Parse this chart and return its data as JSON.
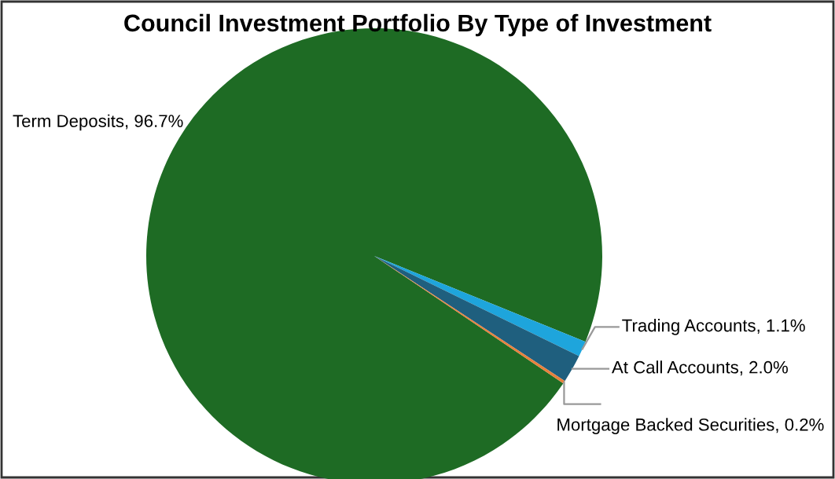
{
  "chart_data": {
    "type": "pie",
    "title": "Council Investment Portfolio By Type of Investment",
    "categories": [
      "Term Deposits",
      "Trading Accounts",
      "At Call Accounts",
      "Mortgage Backed Securities"
    ],
    "values": [
      96.7,
      1.1,
      2.0,
      0.2
    ],
    "colors": [
      "#1e6b24",
      "#1ea5dc",
      "#1f5f7e",
      "#e8803c"
    ],
    "value_labels": [
      "96.7%",
      "1.1%",
      "2.0%",
      "0.2%"
    ],
    "legend": false
  }
}
